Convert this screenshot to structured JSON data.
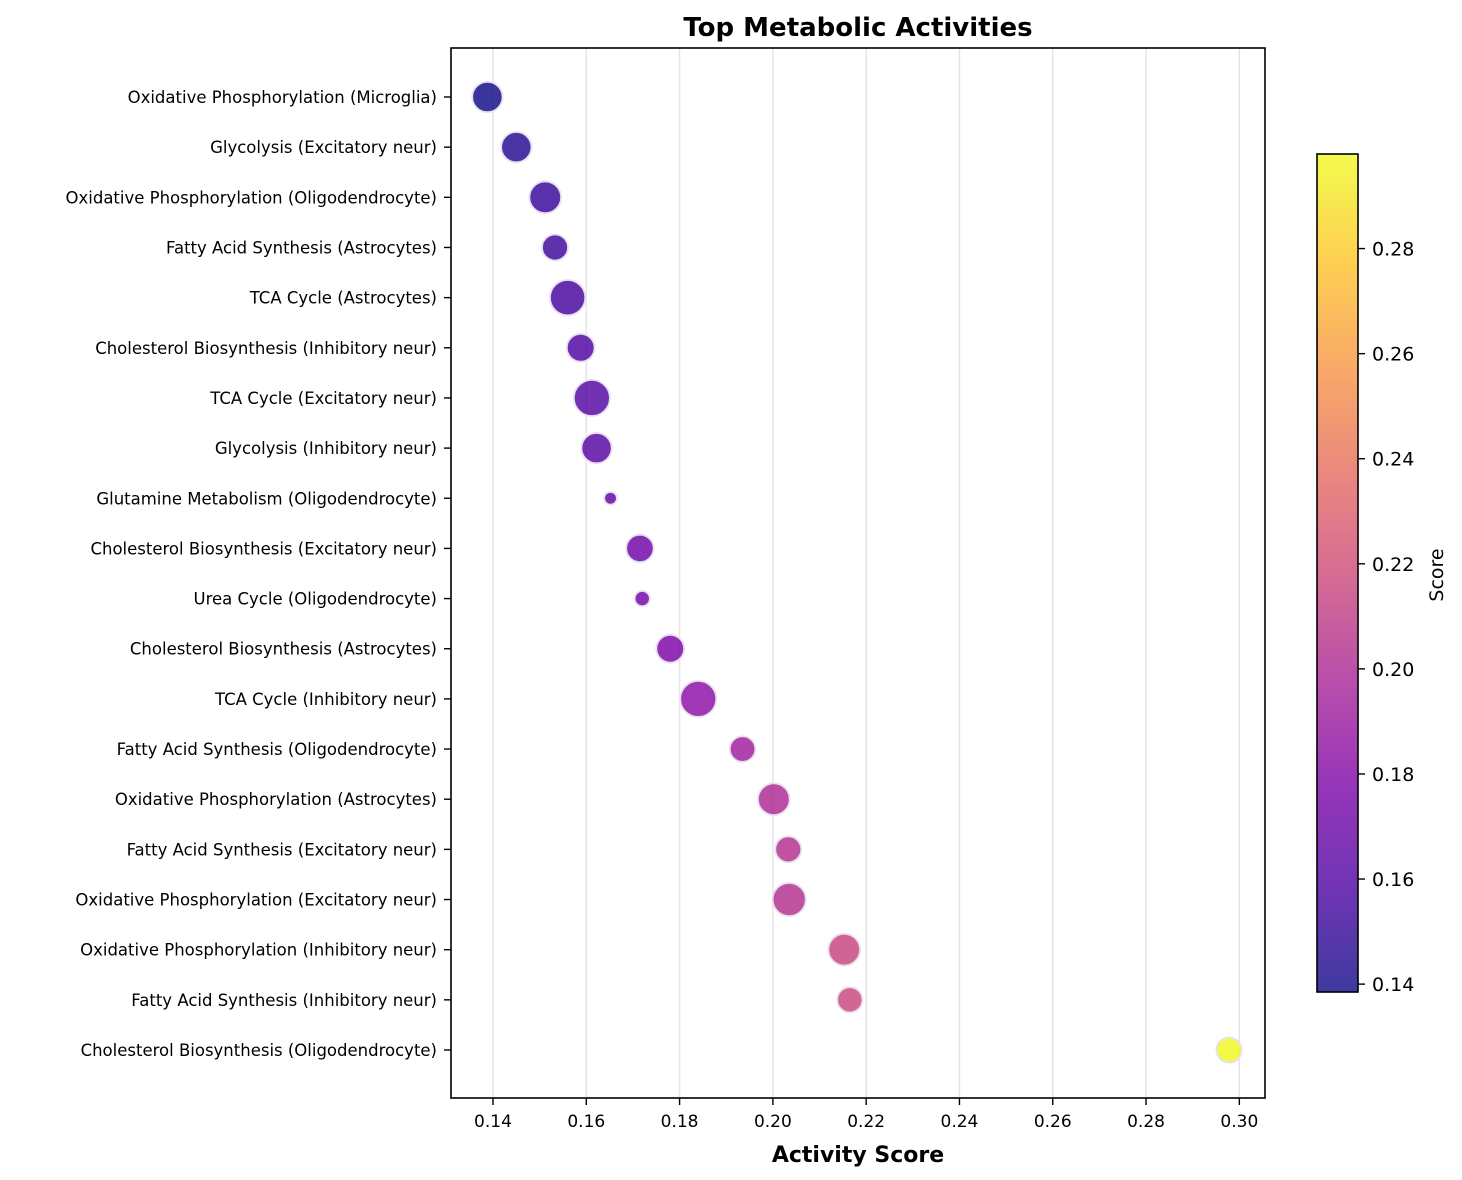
{
  "chart_data": {
    "type": "scatter",
    "title": "Top Metabolic Activities",
    "xlabel": "Activity Score",
    "ylabel": "",
    "xlim": [
      0.131,
      0.3055
    ],
    "xticks": [
      "0.14",
      "0.16",
      "0.18",
      "0.20",
      "0.22",
      "0.24",
      "0.26",
      "0.28",
      "0.30"
    ],
    "grid": "vertical",
    "colormap": "plasma",
    "colorbar": {
      "label": "Score",
      "range": [
        0.1385,
        0.298
      ],
      "ticks": [
        "0.14",
        "0.16",
        "0.18",
        "0.20",
        "0.22",
        "0.24",
        "0.26",
        "0.28"
      ]
    },
    "points": [
      {
        "category": "Oxidative Phosphorylation (Microglia)",
        "x": 0.1388,
        "size": 0.62
      },
      {
        "category": "Glycolysis (Excitatory neur)",
        "x": 0.145,
        "size": 0.62
      },
      {
        "category": "Oxidative Phosphorylation (Oligodendrocyte)",
        "x": 0.1512,
        "size": 0.66
      },
      {
        "category": "Fatty Acid Synthesis (Astrocytes)",
        "x": 0.1533,
        "size": 0.5
      },
      {
        "category": "TCA Cycle (Astrocytes)",
        "x": 0.156,
        "size": 0.76
      },
      {
        "category": "Cholesterol Biosynthesis (Inhibitory neur)",
        "x": 0.1588,
        "size": 0.55
      },
      {
        "category": "TCA Cycle (Excitatory neur)",
        "x": 0.1612,
        "size": 0.78
      },
      {
        "category": "Glycolysis (Inhibitory neur)",
        "x": 0.1622,
        "size": 0.62
      },
      {
        "category": "Glutamine Metabolism (Oligodendrocyte)",
        "x": 0.1652,
        "size": 0.13
      },
      {
        "category": "Cholesterol Biosynthesis (Excitatory neur)",
        "x": 0.1715,
        "size": 0.54
      },
      {
        "category": "Urea Cycle (Oligodendrocyte)",
        "x": 0.172,
        "size": 0.2
      },
      {
        "category": "Cholesterol Biosynthesis (Astrocytes)",
        "x": 0.178,
        "size": 0.55
      },
      {
        "category": "TCA Cycle (Inhibitory neur)",
        "x": 0.184,
        "size": 0.78
      },
      {
        "category": "Fatty Acid Synthesis (Oligodendrocyte)",
        "x": 0.1935,
        "size": 0.49
      },
      {
        "category": "Oxidative Phosphorylation (Astrocytes)",
        "x": 0.2002,
        "size": 0.66
      },
      {
        "category": "Fatty Acid Synthesis (Excitatory neur)",
        "x": 0.2033,
        "size": 0.5
      },
      {
        "category": "Oxidative Phosphorylation (Excitatory neur)",
        "x": 0.2035,
        "size": 0.7
      },
      {
        "category": "Oxidative Phosphorylation (Inhibitory neur)",
        "x": 0.2153,
        "size": 0.66
      },
      {
        "category": "Fatty Acid Synthesis (Inhibitory neur)",
        "x": 0.2165,
        "size": 0.48
      },
      {
        "category": "Cholesterol Biosynthesis (Oligodendrocyte)",
        "x": 0.2978,
        "size": 0.48
      }
    ]
  }
}
